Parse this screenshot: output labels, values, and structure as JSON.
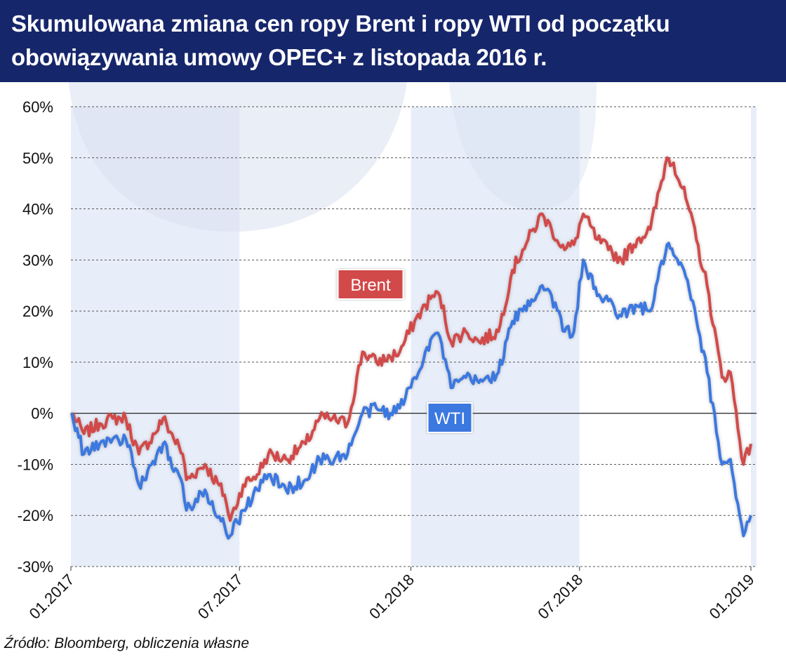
{
  "title": "Skumulowana zmiana cen ropy Brent i ropy WTI od początku obowiązywania umowy OPEC+ z listopada 2016 r.",
  "source": "Źródło: Bloomberg, obliczenia własne",
  "colors": {
    "header_bg": "#16266b",
    "brent": "#d24a48",
    "wti": "#3a78e0",
    "band": "#e8eef9",
    "watermark": "#d8e0ef"
  },
  "chart_data": {
    "type": "line",
    "title": "Skumulowana zmiana cen ropy Brent i ropy WTI od początku obowiązywania umowy OPEC+ z listopada 2016 r.",
    "xlabel": "",
    "ylabel": "",
    "x_format": "YYYY-MM",
    "x_ticks": [
      "01.2017",
      "07.2017",
      "01.2018",
      "07.2018",
      "01.2019"
    ],
    "x_range": [
      "2017-01",
      "2019-01"
    ],
    "yticks": [
      "60%",
      "50%",
      "40%",
      "30%",
      "20%",
      "10%",
      "0%",
      "-10%",
      "-20%",
      "-30%"
    ],
    "ylim": [
      -30,
      60
    ],
    "y_unit": "%",
    "grid": "horizontal dashed",
    "legend": "direct labels on chart",
    "series": [
      {
        "name": "Brent",
        "points": [
          [
            "2017-01-02",
            0
          ],
          [
            "2017-01-15",
            -4
          ],
          [
            "2017-02-01",
            -2
          ],
          [
            "2017-02-15",
            -1
          ],
          [
            "2017-03-01",
            -1
          ],
          [
            "2017-03-15",
            -8
          ],
          [
            "2017-04-01",
            -4
          ],
          [
            "2017-04-10",
            -1
          ],
          [
            "2017-05-01",
            -8
          ],
          [
            "2017-05-05",
            -13
          ],
          [
            "2017-05-25",
            -10
          ],
          [
            "2017-06-15",
            -16
          ],
          [
            "2017-06-21",
            -21
          ],
          [
            "2017-07-05",
            -14
          ],
          [
            "2017-07-20",
            -12
          ],
          [
            "2017-08-01",
            -8
          ],
          [
            "2017-08-20",
            -9
          ],
          [
            "2017-09-10",
            -6
          ],
          [
            "2017-09-25",
            -1
          ],
          [
            "2017-10-05",
            -1
          ],
          [
            "2017-10-25",
            -2
          ],
          [
            "2017-11-10",
            12
          ],
          [
            "2017-11-25",
            10
          ],
          [
            "2017-12-10",
            11
          ],
          [
            "2017-12-20",
            12
          ],
          [
            "2018-01-05",
            18
          ],
          [
            "2018-01-24",
            23
          ],
          [
            "2018-02-01",
            23
          ],
          [
            "2018-02-13",
            14
          ],
          [
            "2018-03-01",
            16
          ],
          [
            "2018-03-15",
            14
          ],
          [
            "2018-04-05",
            16
          ],
          [
            "2018-04-20",
            28
          ],
          [
            "2018-05-01",
            32
          ],
          [
            "2018-05-22",
            39
          ],
          [
            "2018-06-01",
            36
          ],
          [
            "2018-06-15",
            32
          ],
          [
            "2018-06-25",
            33
          ],
          [
            "2018-07-05",
            39
          ],
          [
            "2018-07-20",
            34
          ],
          [
            "2018-08-01",
            32
          ],
          [
            "2018-08-15",
            30
          ],
          [
            "2018-09-01",
            34
          ],
          [
            "2018-09-15",
            36
          ],
          [
            "2018-10-03",
            50
          ],
          [
            "2018-10-10",
            49
          ],
          [
            "2018-10-25",
            41
          ],
          [
            "2018-11-15",
            25
          ],
          [
            "2018-12-01",
            7
          ],
          [
            "2018-12-10",
            8
          ],
          [
            "2018-12-24",
            -10
          ],
          [
            "2019-01-01",
            -6
          ]
        ]
      },
      {
        "name": "WTI",
        "points": [
          [
            "2017-01-02",
            0
          ],
          [
            "2017-01-15",
            -8
          ],
          [
            "2017-02-01",
            -6
          ],
          [
            "2017-02-15",
            -5
          ],
          [
            "2017-03-01",
            -5
          ],
          [
            "2017-03-15",
            -14
          ],
          [
            "2017-04-01",
            -10
          ],
          [
            "2017-04-10",
            -6
          ],
          [
            "2017-05-01",
            -14
          ],
          [
            "2017-05-05",
            -19
          ],
          [
            "2017-05-25",
            -15
          ],
          [
            "2017-06-15",
            -22
          ],
          [
            "2017-06-21",
            -24
          ],
          [
            "2017-07-05",
            -19
          ],
          [
            "2017-07-20",
            -15
          ],
          [
            "2017-08-01",
            -12
          ],
          [
            "2017-08-20",
            -15
          ],
          [
            "2017-09-10",
            -13
          ],
          [
            "2017-09-25",
            -9
          ],
          [
            "2017-10-05",
            -9
          ],
          [
            "2017-10-25",
            -8
          ],
          [
            "2017-11-10",
            0
          ],
          [
            "2017-11-25",
            1
          ],
          [
            "2017-12-10",
            0
          ],
          [
            "2017-12-20",
            1
          ],
          [
            "2018-01-05",
            7
          ],
          [
            "2018-01-24",
            15
          ],
          [
            "2018-02-01",
            15
          ],
          [
            "2018-02-13",
            5
          ],
          [
            "2018-03-01",
            7
          ],
          [
            "2018-03-15",
            6
          ],
          [
            "2018-04-05",
            8
          ],
          [
            "2018-04-20",
            18
          ],
          [
            "2018-05-01",
            20
          ],
          [
            "2018-05-22",
            25
          ],
          [
            "2018-06-01",
            23
          ],
          [
            "2018-06-15",
            16
          ],
          [
            "2018-06-25",
            16
          ],
          [
            "2018-07-05",
            30
          ],
          [
            "2018-07-20",
            23
          ],
          [
            "2018-08-01",
            22
          ],
          [
            "2018-08-15",
            19
          ],
          [
            "2018-09-01",
            21
          ],
          [
            "2018-09-15",
            20
          ],
          [
            "2018-10-03",
            33
          ],
          [
            "2018-10-10",
            31
          ],
          [
            "2018-10-25",
            26
          ],
          [
            "2018-11-15",
            8
          ],
          [
            "2018-12-01",
            -10
          ],
          [
            "2018-12-10",
            -9
          ],
          [
            "2018-12-24",
            -24
          ],
          [
            "2019-01-01",
            -20
          ]
        ]
      }
    ]
  }
}
